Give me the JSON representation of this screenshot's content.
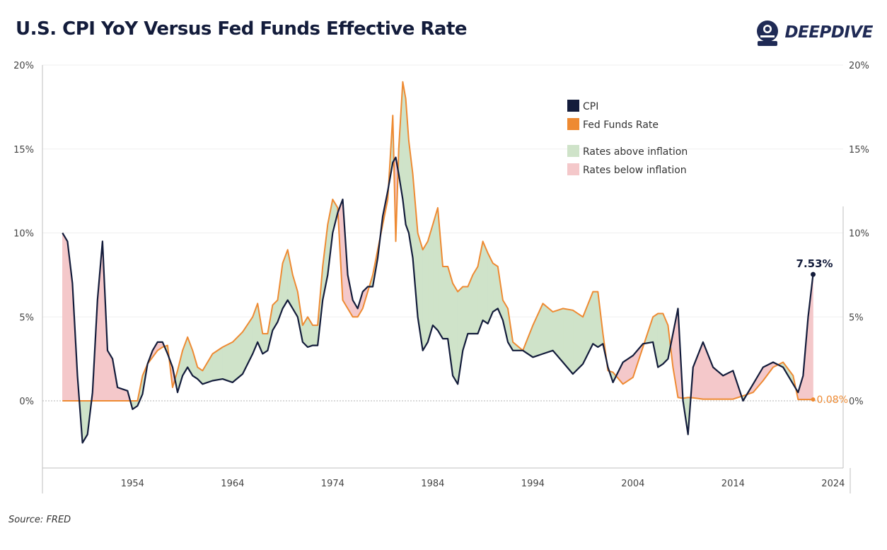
{
  "title": "U.S. CPI YoY Versus Fed Funds Effective Rate",
  "brand": {
    "name": "DEEPDIVE",
    "icon": "diver-helmet-icon"
  },
  "source": "Source: FRED",
  "colors": {
    "cpi": "#131c3b",
    "fed": "#ee8a32",
    "above": "#cfe3c9",
    "below": "#f4c8ca",
    "axis": "#999999",
    "text": "#444444"
  },
  "chart_data": {
    "type": "line",
    "title": "U.S. CPI YoY Versus Fed Funds Effective Rate",
    "xlabel": "",
    "ylabel": "",
    "x_ticks": [
      "1954",
      "1964",
      "1974",
      "1984",
      "1994",
      "2004",
      "2014",
      "2024"
    ],
    "y_ticks_left": [
      "20%",
      "15%",
      "10%",
      "5%",
      "0%"
    ],
    "y_ticks_right": [
      "20%",
      "15%",
      "10%",
      "5%",
      "0%"
    ],
    "ylim": [
      -4,
      20
    ],
    "xlim": [
      1945,
      2025
    ],
    "legend": [
      {
        "label": "CPI",
        "type": "series"
      },
      {
        "label": "Fed Funds Rate",
        "type": "series"
      },
      {
        "label": "Rates above inflation",
        "type": "area"
      },
      {
        "label": "Rates below inflation",
        "type": "area"
      }
    ],
    "legend_position": "top-right",
    "annotations": {
      "cpi_last": "7.53%",
      "fed_last": "0.08%"
    },
    "x": [
      1947.0,
      1947.5,
      1948.0,
      1948.5,
      1949.0,
      1949.5,
      1950.0,
      1950.5,
      1951.0,
      1951.5,
      1952.0,
      1952.5,
      1953.0,
      1953.5,
      1954.0,
      1954.5,
      1955.0,
      1955.5,
      1956.0,
      1956.5,
      1957.0,
      1957.5,
      1958.0,
      1958.5,
      1959.0,
      1959.5,
      1960.0,
      1960.5,
      1961.0,
      1962.0,
      1963.0,
      1964.0,
      1965.0,
      1966.0,
      1966.5,
      1967.0,
      1967.5,
      1968.0,
      1968.5,
      1969.0,
      1969.5,
      1970.0,
      1970.5,
      1971.0,
      1971.5,
      1972.0,
      1972.5,
      1973.0,
      1973.5,
      1974.0,
      1974.5,
      1975.0,
      1975.5,
      1976.0,
      1976.5,
      1977.0,
      1977.5,
      1978.0,
      1978.5,
      1979.0,
      1979.5,
      1980.0,
      1980.3,
      1980.6,
      1981.0,
      1981.3,
      1981.6,
      1982.0,
      1982.5,
      1983.0,
      1983.5,
      1984.0,
      1984.5,
      1985.0,
      1985.5,
      1986.0,
      1986.5,
      1987.0,
      1987.5,
      1988.0,
      1988.5,
      1989.0,
      1989.5,
      1990.0,
      1990.5,
      1991.0,
      1991.5,
      1992.0,
      1993.0,
      1994.0,
      1995.0,
      1996.0,
      1997.0,
      1998.0,
      1999.0,
      2000.0,
      2000.5,
      2001.0,
      2001.5,
      2002.0,
      2003.0,
      2004.0,
      2005.0,
      2006.0,
      2006.5,
      2007.0,
      2007.5,
      2008.0,
      2008.5,
      2009.0,
      2009.5,
      2010.0,
      2011.0,
      2012.0,
      2013.0,
      2014.0,
      2015.0,
      2016.0,
      2017.0,
      2018.0,
      2019.0,
      2020.0,
      2020.5,
      2021.0,
      2021.5,
      2022.0
    ],
    "series": [
      {
        "name": "CPI",
        "values": [
          10.0,
          9.5,
          7.0,
          1.5,
          -2.5,
          -2.0,
          0.5,
          6.0,
          9.5,
          3.0,
          2.5,
          0.8,
          0.7,
          0.6,
          -0.5,
          -0.3,
          0.4,
          2.2,
          3.0,
          3.5,
          3.5,
          2.8,
          2.0,
          0.5,
          1.5,
          2.0,
          1.5,
          1.3,
          1.0,
          1.2,
          1.3,
          1.1,
          1.6,
          2.8,
          3.5,
          2.8,
          3.0,
          4.2,
          4.7,
          5.5,
          6.0,
          5.5,
          5.0,
          3.5,
          3.2,
          3.3,
          3.3,
          6.0,
          7.5,
          10.0,
          11.2,
          12.0,
          7.5,
          6.0,
          5.5,
          6.5,
          6.8,
          6.8,
          8.5,
          11.0,
          12.5,
          14.2,
          14.5,
          13.5,
          12.0,
          10.5,
          10.0,
          8.5,
          5.0,
          3.0,
          3.5,
          4.5,
          4.2,
          3.7,
          3.7,
          1.5,
          1.0,
          3.0,
          4.0,
          4.0,
          4.0,
          4.8,
          4.6,
          5.3,
          5.5,
          4.8,
          3.5,
          3.0,
          3.0,
          2.6,
          2.8,
          3.0,
          2.3,
          1.6,
          2.2,
          3.4,
          3.2,
          3.4,
          2.0,
          1.1,
          2.3,
          2.7,
          3.4,
          3.5,
          2.0,
          2.2,
          2.5,
          4.0,
          5.5,
          0.0,
          -2.0,
          2.0,
          3.5,
          2.0,
          1.5,
          1.8,
          0.0,
          1.0,
          2.0,
          2.3,
          2.0,
          1.0,
          0.5,
          1.5,
          5.0,
          7.53
        ]
      },
      {
        "name": "Fed Funds Rate",
        "values": [
          0.0,
          0.0,
          0.0,
          0.0,
          0.0,
          0.0,
          0.0,
          0.0,
          0.0,
          0.0,
          0.0,
          0.0,
          0.0,
          0.0,
          0.0,
          0.0,
          1.5,
          2.2,
          2.6,
          3.0,
          3.2,
          3.3,
          0.8,
          1.8,
          3.0,
          3.8,
          3.0,
          2.0,
          1.8,
          2.8,
          3.2,
          3.5,
          4.1,
          5.0,
          5.8,
          4.0,
          4.0,
          5.7,
          6.0,
          8.2,
          9.0,
          7.5,
          6.5,
          4.5,
          5.0,
          4.5,
          4.5,
          8.0,
          10.5,
          12.0,
          11.5,
          6.0,
          5.5,
          5.0,
          5.0,
          5.5,
          6.5,
          7.5,
          9.0,
          10.5,
          12.0,
          17.0,
          9.5,
          15.0,
          19.0,
          18.0,
          15.5,
          13.5,
          10.0,
          9.0,
          9.5,
          10.5,
          11.5,
          8.0,
          8.0,
          7.0,
          6.5,
          6.8,
          6.8,
          7.5,
          8.0,
          9.5,
          8.8,
          8.2,
          8.0,
          6.0,
          5.5,
          3.5,
          3.0,
          4.5,
          5.8,
          5.3,
          5.5,
          5.4,
          5.0,
          6.5,
          6.5,
          4.0,
          1.8,
          1.7,
          1.0,
          1.4,
          3.2,
          5.0,
          5.2,
          5.2,
          4.5,
          2.0,
          0.2,
          0.15,
          0.2,
          0.18,
          0.1,
          0.1,
          0.1,
          0.1,
          0.3,
          0.5,
          1.2,
          2.0,
          2.3,
          1.5,
          0.08,
          0.08,
          0.08,
          0.08
        ]
      }
    ]
  }
}
